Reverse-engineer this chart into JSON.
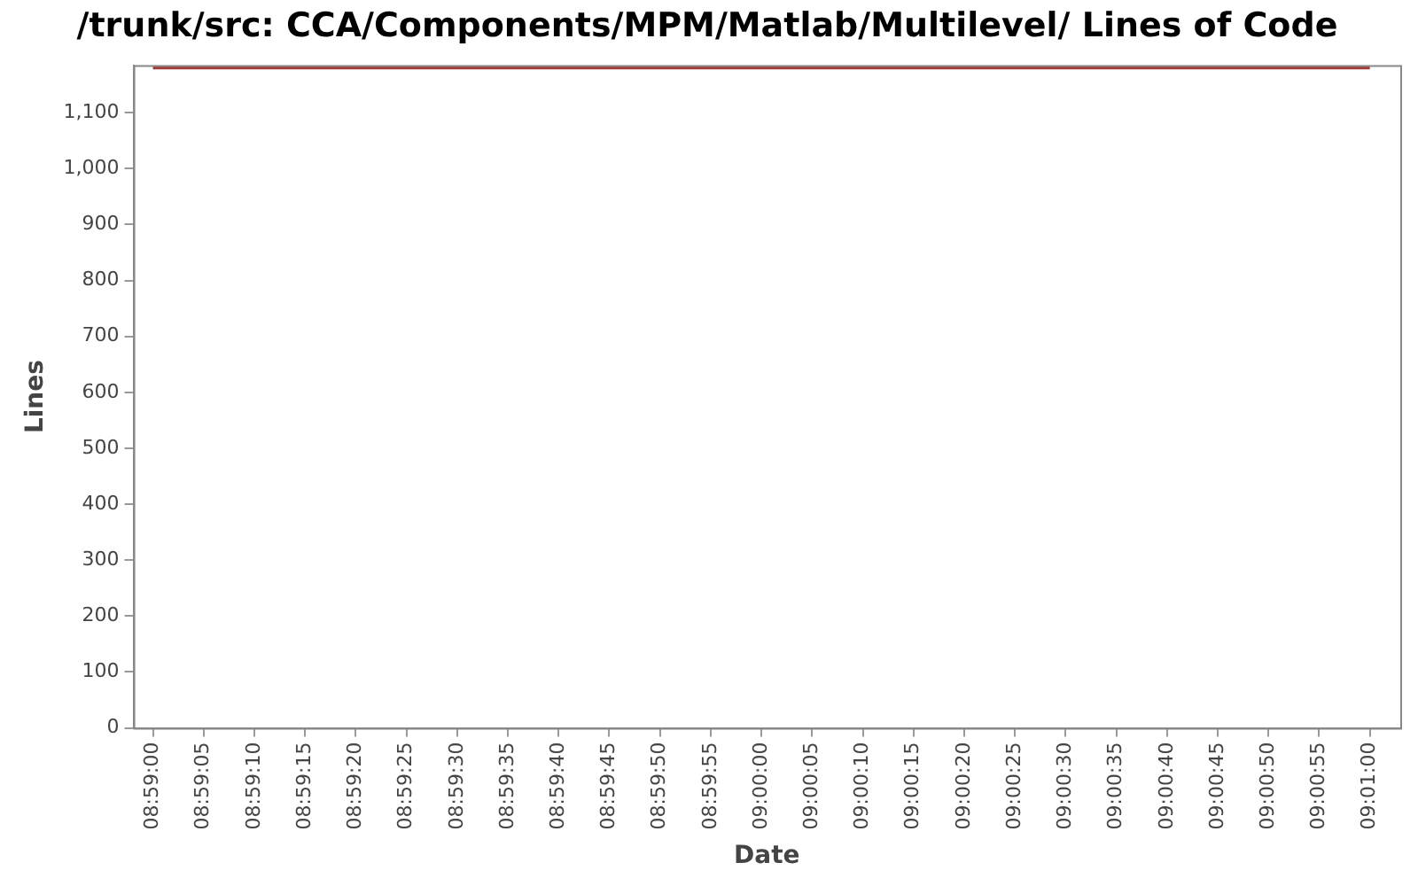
{
  "chart_data": {
    "type": "line",
    "title": "/trunk/src: CCA/Components/MPM/Matlab/Multilevel/ Lines of Code",
    "xlabel": "Date",
    "ylabel": "Lines",
    "x": [
      8.983333,
      9.016667
    ],
    "series": [
      {
        "color": "#9c3a3a",
        "values": [
          1180,
          1180
        ]
      }
    ],
    "xlim": [
      8.9828,
      9.0175
    ],
    "ylim": [
      0,
      1185
    ],
    "xticks": [
      {
        "value": 8.983333,
        "label": "08:59:00"
      },
      {
        "value": 8.984722,
        "label": "08:59:05"
      },
      {
        "value": 8.986111,
        "label": "08:59:10"
      },
      {
        "value": 8.9875,
        "label": "08:59:15"
      },
      {
        "value": 8.988889,
        "label": "08:59:20"
      },
      {
        "value": 8.990278,
        "label": "08:59:25"
      },
      {
        "value": 8.991667,
        "label": "08:59:30"
      },
      {
        "value": 8.993056,
        "label": "08:59:35"
      },
      {
        "value": 8.994444,
        "label": "08:59:40"
      },
      {
        "value": 8.995833,
        "label": "08:59:45"
      },
      {
        "value": 8.997222,
        "label": "08:59:50"
      },
      {
        "value": 8.998611,
        "label": "08:59:55"
      },
      {
        "value": 9,
        "label": "09:00:00"
      },
      {
        "value": 9.001389,
        "label": "09:00:05"
      },
      {
        "value": 9.002778,
        "label": "09:00:10"
      },
      {
        "value": 9.004167,
        "label": "09:00:15"
      },
      {
        "value": 9.005556,
        "label": "09:00:20"
      },
      {
        "value": 9.006944,
        "label": "09:00:25"
      },
      {
        "value": 9.008333,
        "label": "09:00:30"
      },
      {
        "value": 9.009722,
        "label": "09:00:35"
      },
      {
        "value": 9.011111,
        "label": "09:00:40"
      },
      {
        "value": 9.0125,
        "label": "09:00:45"
      },
      {
        "value": 9.013889,
        "label": "09:00:50"
      },
      {
        "value": 9.015278,
        "label": "09:00:55"
      },
      {
        "value": 9.016667,
        "label": "09:01:00"
      }
    ],
    "yticks": [
      0,
      100,
      200,
      300,
      400,
      500,
      600,
      700,
      800,
      900,
      {
        "value": 1000,
        "label": "1,000"
      },
      {
        "value": 1100,
        "label": "1,100"
      }
    ],
    "grid": false,
    "legend": false,
    "marker": "none",
    "line_style": "solid"
  }
}
